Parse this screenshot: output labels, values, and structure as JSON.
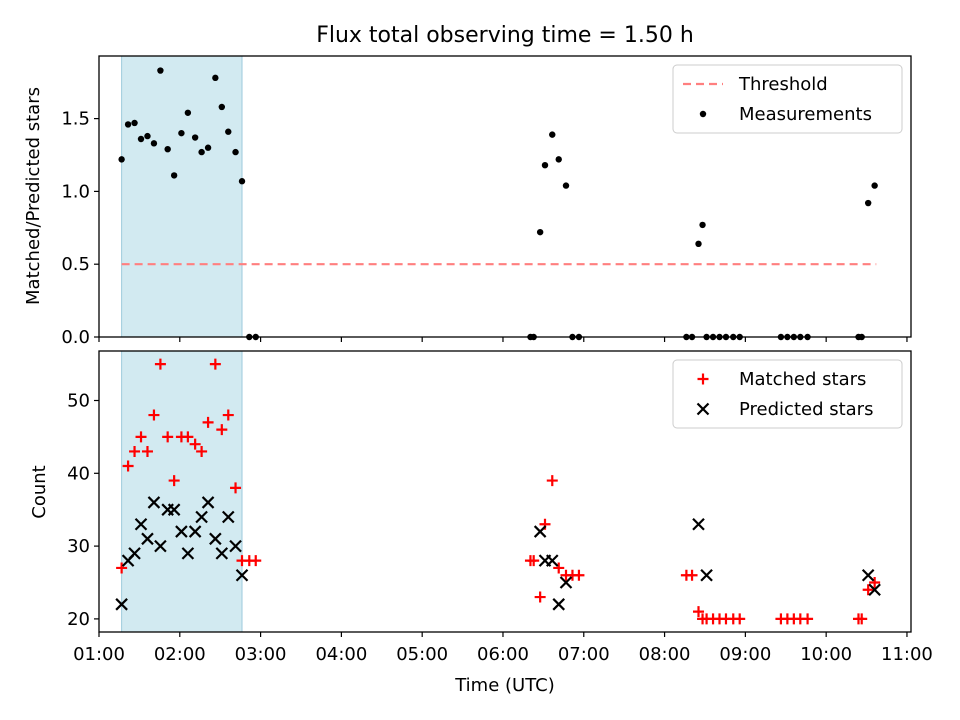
{
  "title": "Flux total observing time = 1.50 h",
  "colors": {
    "threshold": "#ff7f7f",
    "measurement": "#000000",
    "matched": "#ff0000",
    "predicted": "#000000",
    "shade": "#add8e6"
  },
  "chart_data": [
    {
      "type": "scatter",
      "panel": "top",
      "ylabel": "Matched/Predicted stars",
      "xlabel": "",
      "xlim": [
        1.0,
        11.05
      ],
      "ylim": [
        0.0,
        1.93
      ],
      "yticks": [
        0.0,
        0.5,
        1.0,
        1.5
      ],
      "ytick_labels": [
        "0.0",
        "0.5",
        "1.0",
        "1.5"
      ],
      "shaded_region": [
        1.28,
        2.77
      ],
      "legend": {
        "position": "upper right",
        "entries": [
          "Threshold",
          "Measurements"
        ]
      },
      "series": [
        {
          "name": "Threshold",
          "style": "dashed-line",
          "x": [
            1.28,
            10.62
          ],
          "y": [
            0.5,
            0.5
          ]
        },
        {
          "name": "Measurements",
          "style": "dot",
          "x": [
            1.28,
            1.36,
            1.44,
            1.52,
            1.6,
            1.68,
            1.76,
            1.85,
            1.93,
            2.02,
            2.1,
            2.19,
            2.27,
            2.35,
            2.44,
            2.52,
            2.6,
            2.69,
            2.77,
            2.86,
            2.94,
            6.34,
            6.38,
            6.46,
            6.52,
            6.61,
            6.69,
            6.78,
            6.86,
            6.94,
            8.27,
            8.34,
            8.42,
            8.47,
            8.52,
            8.6,
            8.68,
            8.76,
            8.85,
            8.93,
            9.44,
            9.52,
            9.6,
            9.68,
            9.77,
            10.4,
            10.44,
            10.52,
            10.6
          ],
          "y": [
            1.22,
            1.46,
            1.47,
            1.36,
            1.38,
            1.33,
            1.83,
            1.29,
            1.11,
            1.4,
            1.54,
            1.37,
            1.27,
            1.3,
            1.78,
            1.58,
            1.41,
            1.27,
            1.07,
            0.0,
            0.0,
            0.0,
            0.0,
            0.72,
            1.18,
            1.39,
            1.22,
            1.04,
            0.0,
            0.0,
            0.0,
            0.0,
            0.64,
            0.77,
            0.0,
            0.0,
            0.0,
            0.0,
            0.0,
            0.0,
            0.0,
            0.0,
            0.0,
            0.0,
            0.0,
            0.0,
            0.0,
            0.92,
            1.04
          ]
        }
      ]
    },
    {
      "type": "scatter",
      "panel": "bottom",
      "ylabel": "Count",
      "xlabel": "Time (UTC)",
      "xlim": [
        1.0,
        11.05
      ],
      "ylim": [
        18.2,
        56.8
      ],
      "yticks": [
        20,
        30,
        40,
        50
      ],
      "ytick_labels": [
        "20",
        "30",
        "40",
        "50"
      ],
      "xticks": [
        1,
        2,
        3,
        4,
        5,
        6,
        7,
        8,
        9,
        10,
        11
      ],
      "xtick_labels": [
        "01:00",
        "02:00",
        "03:00",
        "04:00",
        "05:00",
        "06:00",
        "07:00",
        "08:00",
        "09:00",
        "10:00",
        "11:00"
      ],
      "shaded_region": [
        1.28,
        2.77
      ],
      "legend": {
        "position": "upper right",
        "entries": [
          "Matched stars",
          "Predicted stars"
        ]
      },
      "series": [
        {
          "name": "Matched stars",
          "style": "plus",
          "x": [
            1.28,
            1.36,
            1.44,
            1.52,
            1.6,
            1.68,
            1.76,
            1.85,
            1.93,
            2.02,
            2.1,
            2.19,
            2.27,
            2.35,
            2.44,
            2.52,
            2.6,
            2.69,
            2.77,
            2.86,
            2.94,
            6.34,
            6.38,
            6.46,
            6.52,
            6.61,
            6.69,
            6.78,
            6.86,
            6.94,
            8.27,
            8.34,
            8.42,
            8.47,
            8.52,
            8.6,
            8.68,
            8.76,
            8.85,
            8.93,
            9.44,
            9.52,
            9.6,
            9.68,
            9.77,
            10.4,
            10.44,
            10.52,
            10.6
          ],
          "y": [
            27,
            41,
            43,
            45,
            43,
            48,
            55,
            45,
            39,
            45,
            45,
            44,
            43,
            47,
            55,
            46,
            48,
            38,
            28,
            28,
            28,
            28,
            28,
            23,
            33,
            39,
            27,
            26,
            26,
            26,
            26,
            26,
            21,
            20,
            20,
            20,
            20,
            20,
            20,
            20,
            20,
            20,
            20,
            20,
            20,
            20,
            20,
            24,
            25
          ]
        },
        {
          "name": "Predicted stars",
          "style": "x",
          "x": [
            1.28,
            1.36,
            1.44,
            1.52,
            1.6,
            1.68,
            1.76,
            1.85,
            1.93,
            2.02,
            2.1,
            2.19,
            2.27,
            2.35,
            2.44,
            2.52,
            2.6,
            2.69,
            2.77,
            6.46,
            6.52,
            6.61,
            6.69,
            6.78,
            8.42,
            8.52,
            10.52,
            10.6
          ],
          "y": [
            22,
            28,
            29,
            33,
            31,
            36,
            30,
            35,
            35,
            32,
            29,
            32,
            34,
            36,
            31,
            29,
            34,
            30,
            26,
            32,
            28,
            28,
            22,
            25,
            33,
            26,
            26,
            24
          ]
        }
      ]
    }
  ]
}
